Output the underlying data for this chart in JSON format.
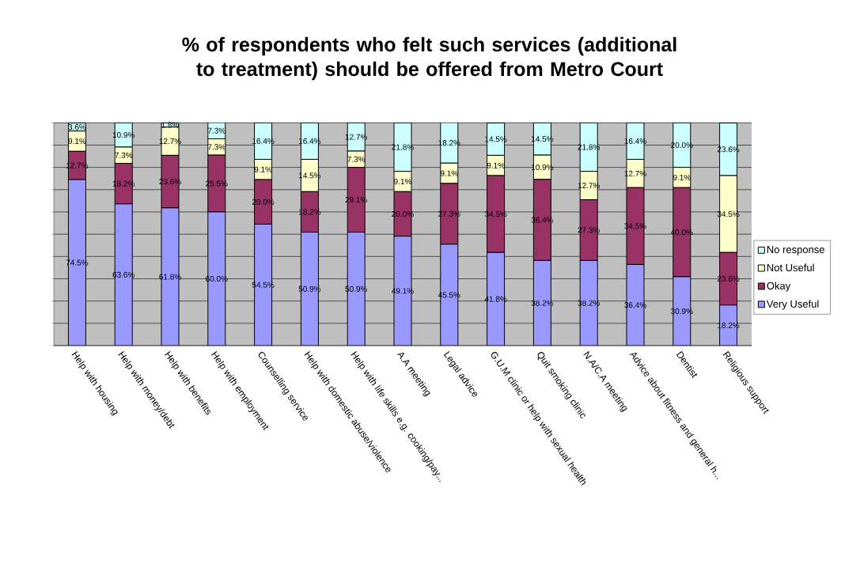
{
  "chart_data": {
    "type": "bar",
    "stacked": true,
    "title": "% of respondents who felt such services (additional to treatment) should be offered from Metro Court",
    "categories": [
      "Help with housing",
      "Help with money/debt",
      "Help with benefits",
      "Help with employment",
      "Counselling service",
      "Help with domestic abuse/violence",
      "Help with life skills e.g. cooking/pay...",
      "A.A meeting",
      "Legal advice",
      "G.U.M clinic or help with sexual health",
      "Quit smoking clinic",
      "N.A/C.A meeting",
      "Advice about fitness and general h...",
      "Dentist",
      "Religious support"
    ],
    "series": [
      {
        "name": "Very Useful",
        "color": "#9999ff",
        "values": [
          74.5,
          63.6,
          61.8,
          60.0,
          54.5,
          50.9,
          50.9,
          49.1,
          45.5,
          41.8,
          38.2,
          38.2,
          36.4,
          30.9,
          18.2
        ],
        "value_labels": [
          "74.5%",
          "63.6%",
          "61.8%",
          "60.0%",
          "54.5%",
          "50.9%",
          "50.9%",
          "49.1%",
          "45.5%",
          "41.8%",
          "38.2%",
          "38.2%",
          "36.4%",
          "30.9%",
          "18.2%"
        ]
      },
      {
        "name": "Okay",
        "color": "#993366",
        "values": [
          12.7,
          18.2,
          23.6,
          25.5,
          20.0,
          18.2,
          29.1,
          20.0,
          27.3,
          34.5,
          36.4,
          27.3,
          34.5,
          40.0,
          23.6
        ],
        "value_labels": [
          "12.7%",
          "18.2%",
          "23.6%",
          "25.5%",
          "20.0%",
          "18.2%",
          "29.1%",
          "20.0%",
          "27.3%",
          "34.5%",
          "36.4%",
          "27.3%",
          "34.5%",
          "40.0%",
          "23.6%"
        ]
      },
      {
        "name": "Not Useful",
        "color": "#ffffcc",
        "values": [
          9.1,
          7.3,
          12.7,
          7.3,
          9.1,
          14.5,
          7.3,
          9.1,
          9.1,
          9.1,
          10.9,
          12.7,
          12.7,
          9.1,
          34.5
        ],
        "value_labels": [
          "9.1%",
          "7.3%",
          "12.7%",
          "7.3%",
          "9.1%",
          "14.5%",
          "7.3%",
          "9.1%",
          "9.1%",
          "9.1%",
          "10.9%",
          "12.7%",
          "12.7%",
          "9.1%",
          "34.5%"
        ]
      },
      {
        "name": "No response",
        "color": "#ccffff",
        "values": [
          3.6,
          10.9,
          1.8,
          7.3,
          16.4,
          16.4,
          12.7,
          21.8,
          18.2,
          14.5,
          14.5,
          21.8,
          16.4,
          20.0,
          23.6
        ],
        "value_labels": [
          "3.6%",
          "10.9%",
          "1.8%",
          "7.3%",
          "16.4%",
          "16.4%",
          "12.7%",
          "21.8%",
          "18.2%",
          "14.5%",
          "14.5%",
          "21.8%",
          "16.4%",
          "20.0%",
          "23.6%"
        ]
      }
    ],
    "ylim": [
      0,
      100.1
    ],
    "yticks": [
      {
        "value": 0,
        "label": null
      },
      {
        "value": 10,
        "label": null
      },
      {
        "value": 20,
        "label": null
      },
      {
        "value": 30,
        "label": null
      },
      {
        "value": 40,
        "label": null
      },
      {
        "value": 50,
        "label": null
      },
      {
        "value": 60,
        "label": null
      },
      {
        "value": 70,
        "label": null
      },
      {
        "value": 80,
        "label": null
      },
      {
        "value": 90,
        "label": null
      },
      {
        "value": 100,
        "label": null
      }
    ],
    "grid": "y",
    "legend": "right"
  }
}
